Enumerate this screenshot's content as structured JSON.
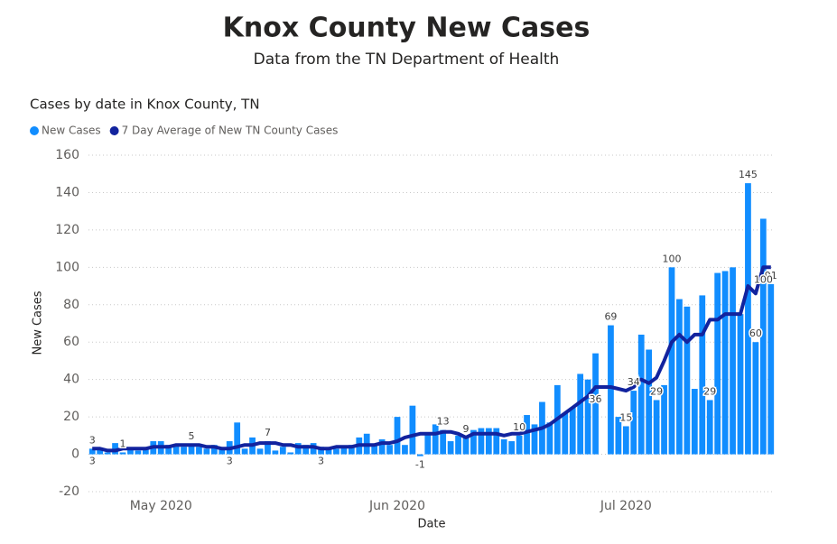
{
  "chart_data": {
    "type": "bar_line",
    "title": "Knox County New Cases",
    "subtitle": "Data from the TN Department of Health",
    "chart_title": "Cases by date in Knox County, TN",
    "x_label": "Date",
    "y_label": "New Cases",
    "categories": [
      null,
      null,
      null,
      null,
      null,
      null,
      null,
      null,
      null,
      "May 2020",
      null,
      null,
      null,
      null,
      null,
      null,
      null,
      null,
      null,
      null,
      null,
      null,
      null,
      null,
      null,
      null,
      null,
      null,
      null,
      null,
      null,
      null,
      null,
      null,
      null,
      null,
      null,
      null,
      null,
      null,
      "Jun 2020",
      null,
      null,
      null,
      null,
      null,
      null,
      null,
      null,
      null,
      null,
      null,
      null,
      null,
      null,
      null,
      null,
      null,
      null,
      null,
      null,
      null,
      null,
      null,
      null,
      null,
      null,
      null,
      null,
      null,
      "Jul 2020",
      null,
      null,
      null,
      null,
      null,
      null,
      null,
      null,
      null,
      null,
      null,
      null,
      null,
      null,
      null,
      null,
      null,
      null,
      null
    ],
    "series": [
      {
        "name": "New Cases",
        "type": "bar",
        "color": "#118dff",
        "values": [
          3,
          3,
          1,
          6,
          1,
          3,
          2,
          3,
          7,
          7,
          5,
          5,
          4,
          5,
          4,
          3,
          5,
          3,
          7,
          17,
          3,
          9,
          3,
          7,
          2,
          4,
          1,
          6,
          5,
          6,
          4,
          3,
          3,
          4,
          5,
          9,
          11,
          5,
          8,
          5,
          20,
          5,
          26,
          -1,
          11,
          16,
          13,
          7,
          10,
          9,
          13,
          14,
          14,
          14,
          8,
          7,
          10,
          21,
          16,
          28,
          17,
          37,
          22,
          25,
          43,
          40,
          54,
          0,
          69,
          20,
          15,
          34,
          64,
          56,
          29,
          37,
          100,
          83,
          79,
          35,
          85,
          29,
          97,
          98,
          100,
          75,
          145,
          60,
          126,
          91
        ],
        "value_labels": [
          "3",
          null,
          null,
          null,
          "1",
          null,
          null,
          null,
          null,
          null,
          null,
          null,
          null,
          "5",
          null,
          null,
          null,
          null,
          null,
          null,
          null,
          null,
          null,
          "7",
          null,
          null,
          null,
          null,
          null,
          null,
          null,
          null,
          null,
          null,
          null,
          null,
          null,
          null,
          null,
          null,
          null,
          null,
          null,
          "-1",
          null,
          null,
          "13",
          null,
          null,
          "9",
          null,
          null,
          null,
          null,
          null,
          null,
          "10",
          null,
          null,
          null,
          null,
          null,
          null,
          null,
          null,
          null,
          null,
          null,
          "69",
          null,
          "15",
          "34",
          null,
          null,
          "29",
          null,
          "100",
          null,
          null,
          null,
          null,
          "29",
          null,
          null,
          null,
          null,
          "145",
          "60",
          null,
          "91"
        ]
      },
      {
        "name": "7 Day Average of New TN County Cases",
        "type": "line",
        "color": "#12239e",
        "values": [
          3,
          3,
          2,
          2,
          3,
          3,
          3,
          3,
          4,
          4,
          4,
          5,
          5,
          5,
          5,
          4,
          4,
          3,
          3,
          4,
          5,
          5,
          6,
          6,
          6,
          5,
          5,
          4,
          4,
          4,
          3,
          3,
          4,
          4,
          4,
          5,
          5,
          5,
          6,
          6,
          7,
          9,
          10,
          11,
          11,
          11,
          12,
          12,
          11,
          9,
          11,
          11,
          11,
          11,
          10,
          11,
          11,
          12,
          13,
          14,
          16,
          19,
          22,
          25,
          28,
          31,
          36,
          36,
          36,
          35,
          34,
          36,
          40,
          38,
          41,
          50,
          60,
          64,
          60,
          64,
          64,
          72,
          72,
          75,
          75,
          75,
          90,
          86,
          100,
          100
        ],
        "value_labels": [
          "3",
          null,
          null,
          null,
          null,
          null,
          null,
          null,
          null,
          null,
          null,
          null,
          null,
          null,
          null,
          null,
          null,
          null,
          "3",
          null,
          null,
          null,
          null,
          null,
          null,
          null,
          null,
          null,
          null,
          null,
          "3",
          null,
          null,
          null,
          null,
          null,
          null,
          null,
          null,
          null,
          null,
          null,
          null,
          null,
          null,
          null,
          null,
          null,
          null,
          null,
          null,
          null,
          null,
          null,
          null,
          null,
          null,
          null,
          null,
          null,
          null,
          null,
          null,
          null,
          null,
          null,
          "36",
          null,
          null,
          null,
          null,
          null,
          null,
          null,
          null,
          null,
          null,
          null,
          null,
          null,
          null,
          null,
          null,
          null,
          null,
          null,
          null,
          null,
          "100",
          null
        ]
      }
    ],
    "ylim": [
      -20,
      160
    ],
    "yticks": [
      -20,
      0,
      20,
      40,
      60,
      80,
      100,
      120,
      140,
      160
    ],
    "grid": true,
    "legend": "top-left"
  }
}
